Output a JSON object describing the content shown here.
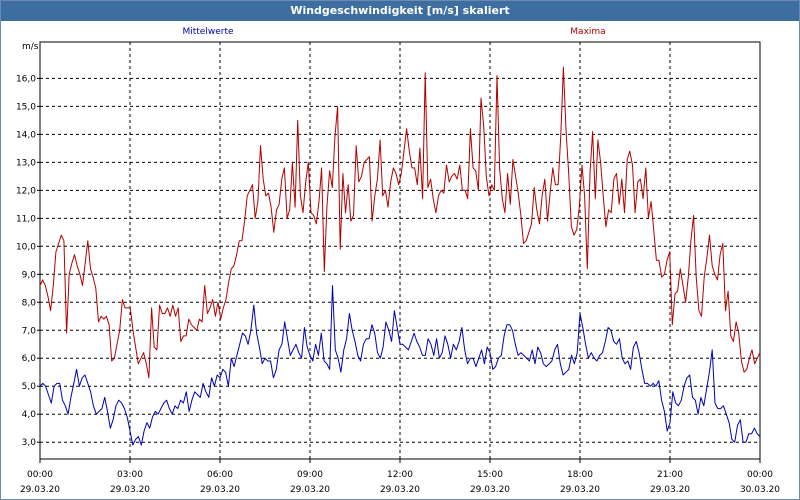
{
  "window": {
    "title": "Windgeschwindigkeit [m/s] skaliert"
  },
  "chart_data": {
    "type": "line",
    "title": "Windgeschwindigkeit [m/s] skaliert",
    "ylabel": "m/s",
    "xlabel": "",
    "ylim": [
      2.4,
      17.3
    ],
    "xlim": [
      0,
      24
    ],
    "grid": true,
    "yticks": [
      "3,0",
      "4,0",
      "5,0",
      "6,0",
      "7,0",
      "8,0",
      "9,0",
      "10,0",
      "11,0",
      "12,0",
      "13,0",
      "14,0",
      "15,0",
      "16,0"
    ],
    "xticks": [
      {
        "time": "00:00",
        "date": "29.03.20"
      },
      {
        "time": "03:00",
        "date": "29.03.20"
      },
      {
        "time": "06:00",
        "date": "29.03.20"
      },
      {
        "time": "09:00",
        "date": "29.03.20"
      },
      {
        "time": "12:00",
        "date": "29.03.20"
      },
      {
        "time": "15:00",
        "date": "29.03.20"
      },
      {
        "time": "18:00",
        "date": "29.03.20"
      },
      {
        "time": "21:00",
        "date": "29.03.20"
      },
      {
        "time": "00:00",
        "date": "30.03.20"
      }
    ],
    "series": [
      {
        "name": "Mittelwerte",
        "color": "#0000b4",
        "values": [
          5.0,
          5.1,
          5.0,
          4.7,
          4.4,
          5.0,
          5.1,
          5.1,
          4.5,
          4.3,
          4.0,
          4.6,
          5.1,
          5.6,
          5.0,
          5.3,
          5.4,
          5.1,
          4.8,
          4.3,
          4.0,
          4.1,
          4.2,
          4.6,
          4.1,
          3.5,
          3.8,
          4.3,
          4.5,
          4.4,
          4.2,
          3.9,
          3.4,
          2.9,
          3.1,
          3.2,
          2.9,
          3.4,
          3.7,
          3.5,
          3.9,
          4.1,
          4.0,
          4.2,
          4.4,
          4.5,
          4.2,
          4.0,
          4.3,
          4.2,
          4.5,
          4.4,
          4.8,
          4.1,
          4.5,
          4.8,
          4.7,
          4.6,
          5.1,
          4.8,
          4.6,
          5.3,
          5.0,
          5.4,
          5.3,
          5.6,
          5.5,
          5.0,
          6.0,
          5.7,
          6.1,
          6.5,
          6.9,
          6.8,
          6.5,
          7.0,
          7.9,
          6.9,
          6.4,
          5.8,
          6.0,
          5.9,
          5.9,
          5.3,
          5.6,
          6.3,
          6.5,
          7.3,
          6.7,
          6.1,
          6.3,
          6.5,
          6.2,
          6.0,
          7.1,
          6.4,
          6.1,
          5.9,
          6.5,
          6.1,
          6.9,
          5.9,
          5.8,
          5.6,
          8.6,
          6.3,
          6.0,
          5.5,
          6.3,
          6.7,
          7.6,
          7.0,
          6.6,
          6.1,
          5.9,
          6.5,
          6.7,
          6.7,
          7.2,
          6.9,
          6.2,
          6.0,
          6.4,
          7.3,
          7.0,
          6.6,
          7.7,
          7.1,
          6.5,
          6.5,
          6.4,
          6.3,
          6.6,
          6.9,
          6.6,
          6.4,
          6.1,
          6.1,
          6.7,
          6.5,
          6.1,
          6.7,
          6.0,
          6.2,
          6.8,
          6.5,
          6.0,
          6.5,
          6.3,
          6.6,
          7.1,
          6.3,
          5.8,
          6.0,
          6.0,
          5.7,
          6.0,
          6.3,
          5.8,
          6.4,
          6.2,
          5.6,
          5.7,
          6.0,
          6.1,
          6.8,
          7.2,
          7.2,
          7.0,
          6.5,
          6.1,
          6.2,
          6.1,
          6.0,
          5.9,
          6.3,
          5.8,
          6.4,
          6.2,
          5.8,
          5.7,
          5.8,
          5.9,
          6.3,
          6.5,
          5.8,
          5.4,
          5.5,
          5.6,
          6.1,
          5.8,
          6.2,
          7.6,
          7.1,
          6.5,
          6.0,
          6.2,
          6.0,
          5.9,
          6.1,
          6.2,
          6.6,
          7.1,
          7.0,
          6.6,
          6.5,
          6.7,
          6.0,
          5.8,
          5.9,
          5.6,
          6.4,
          6.6,
          6.2,
          5.6,
          5.1,
          5.1,
          5.0,
          5.1,
          5.0,
          5.2,
          4.5,
          4.1,
          3.4,
          3.7,
          4.8,
          4.4,
          4.3,
          4.5,
          5.0,
          5.3,
          5.4,
          4.6,
          4.5,
          4.0,
          4.6,
          4.3,
          4.9,
          5.5,
          6.3,
          4.4,
          4.2,
          4.2,
          4.3,
          4.0,
          3.7,
          3.1,
          3.0,
          3.6,
          3.8,
          3.0,
          3.0,
          3.3,
          3.3,
          3.5,
          3.3,
          3.2
        ]
      },
      {
        "name": "Maxima",
        "color": "#b40000",
        "values": [
          8.6,
          8.8,
          8.6,
          8.2,
          7.7,
          8.6,
          9.8,
          10.1,
          10.4,
          10.2,
          6.9,
          9.0,
          9.4,
          9.7,
          9.3,
          9.0,
          8.6,
          9.4,
          10.2,
          9.2,
          8.9,
          8.5,
          7.3,
          7.5,
          7.4,
          7.5,
          7.2,
          5.9,
          6.0,
          6.5,
          7.0,
          8.1,
          7.8,
          7.8,
          7.8,
          7.0,
          6.4,
          5.8,
          6.0,
          6.2,
          5.8,
          5.3,
          7.8,
          6.4,
          6.3,
          7.9,
          7.6,
          7.6,
          7.8,
          7.5,
          7.9,
          7.5,
          7.8,
          6.6,
          6.8,
          6.8,
          7.4,
          7.2,
          7.1,
          7.0,
          7.4,
          7.3,
          8.6,
          7.6,
          7.8,
          8.1,
          7.5,
          8.0,
          7.4,
          7.8,
          8.1,
          8.7,
          9.2,
          9.3,
          9.7,
          10.2,
          10.2,
          10.9,
          11.8,
          12.0,
          12.2,
          11.0,
          11.6,
          13.6,
          12.4,
          11.8,
          11.9,
          11.4,
          10.5,
          11.3,
          11.5,
          12.4,
          12.8,
          11.0,
          11.3,
          13.0,
          11.4,
          14.5,
          11.8,
          11.2,
          12.3,
          13.0,
          11.2,
          11.1,
          10.8,
          11.6,
          12.8,
          9.1,
          11.4,
          12.7,
          12.1,
          13.9,
          15.0,
          9.9,
          12.6,
          11.2,
          12.2,
          10.9,
          11.1,
          13.6,
          12.3,
          12.5,
          13.0,
          13.1,
          13.2,
          10.9,
          11.8,
          12.4,
          13.8,
          11.8,
          12.0,
          11.4,
          12.3,
          12.8,
          12.6,
          12.2,
          12.6,
          13.4,
          14.2,
          13.4,
          12.8,
          12.8,
          12.2,
          13.5,
          11.7,
          16.2,
          12.1,
          12.4,
          11.7,
          11.2,
          11.8,
          12.0,
          11.9,
          12.9,
          12.3,
          12.5,
          12.6,
          12.4,
          12.9,
          12.0,
          12.0,
          11.7,
          14.2,
          12.8,
          12.7,
          12.0,
          15.3,
          14.3,
          12.5,
          11.8,
          12.2,
          12.0,
          16.1,
          12.8,
          11.7,
          11.2,
          12.6,
          11.5,
          13.1,
          12.5,
          11.9,
          11.1,
          10.1,
          10.2,
          10.5,
          10.8,
          12.1,
          11.3,
          10.8,
          11.8,
          12.4,
          10.9,
          11.9,
          12.8,
          12.2,
          12.2,
          13.9,
          16.4,
          14.1,
          12.6,
          10.7,
          10.4,
          10.6,
          11.4,
          12.9,
          11.8,
          9.2,
          12.6,
          14.1,
          11.7,
          13.8,
          13.0,
          11.8,
          10.7,
          11.3,
          11.2,
          12.4,
          12.6,
          11.5,
          12.4,
          11.2,
          13.1,
          13.4,
          12.9,
          11.2,
          12.3,
          12.4,
          11.7,
          12.8,
          11.0,
          11.6,
          10.6,
          9.5,
          9.5,
          8.9,
          9.0,
          9.5,
          9.8,
          7.2,
          8.3,
          8.4,
          9.2,
          8.6,
          8.0,
          8.9,
          10.2,
          11.1,
          8.9,
          7.7,
          7.5,
          8.9,
          9.6,
          10.4,
          9.3,
          9.0,
          8.8,
          9.7,
          10.1,
          7.7,
          8.4,
          6.8,
          6.6,
          7.3,
          6.9,
          5.9,
          5.5,
          5.6,
          6.0,
          6.3,
          5.8,
          6.0,
          6.2
        ]
      }
    ]
  }
}
